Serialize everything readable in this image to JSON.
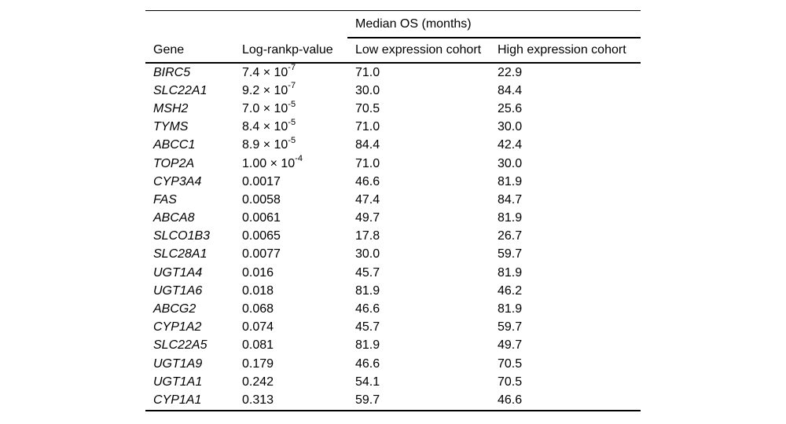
{
  "table": {
    "spanner_header": "Median OS (months)",
    "columns": [
      "Gene",
      "Log-rankp-value",
      "Low expression cohort",
      "High expression cohort"
    ],
    "rows": [
      {
        "gene": "BIRC5",
        "p_base": "7.4 × 10",
        "p_exp": "-7",
        "low": "71.0",
        "high": "22.9"
      },
      {
        "gene": "SLC22A1",
        "p_base": "9.2 × 10",
        "p_exp": "-7",
        "low": "30.0",
        "high": "84.4"
      },
      {
        "gene": "MSH2",
        "p_base": "7.0 × 10",
        "p_exp": "-5",
        "low": "70.5",
        "high": "25.6"
      },
      {
        "gene": "TYMS",
        "p_base": "8.4 × 10",
        "p_exp": "-5",
        "low": "71.0",
        "high": "30.0"
      },
      {
        "gene": "ABCC1",
        "p_base": "8.9 × 10",
        "p_exp": "-5",
        "low": "84.4",
        "high": "42.4"
      },
      {
        "gene": "TOP2A",
        "p_base": "1.00 × 10",
        "p_exp": "-4",
        "low": "71.0",
        "high": "30.0"
      },
      {
        "gene": "CYP3A4",
        "p_base": "0.0017",
        "p_exp": "",
        "low": "46.6",
        "high": "81.9"
      },
      {
        "gene": "FAS",
        "p_base": "0.0058",
        "p_exp": "",
        "low": "47.4",
        "high": "84.7"
      },
      {
        "gene": "ABCA8",
        "p_base": "0.0061",
        "p_exp": "",
        "low": "49.7",
        "high": "81.9"
      },
      {
        "gene": "SLCO1B3",
        "p_base": "0.0065",
        "p_exp": "",
        "low": "17.8",
        "high": "26.7"
      },
      {
        "gene": "SLC28A1",
        "p_base": "0.0077",
        "p_exp": "",
        "low": "30.0",
        "high": "59.7"
      },
      {
        "gene": "UGT1A4",
        "p_base": "0.016",
        "p_exp": "",
        "low": "45.7",
        "high": "81.9"
      },
      {
        "gene": "UGT1A6",
        "p_base": "0.018",
        "p_exp": "",
        "low": "81.9",
        "high": "46.2"
      },
      {
        "gene": "ABCG2",
        "p_base": "0.068",
        "p_exp": "",
        "low": "46.6",
        "high": "81.9"
      },
      {
        "gene": "CYP1A2",
        "p_base": "0.074",
        "p_exp": "",
        "low": "45.7",
        "high": "59.7"
      },
      {
        "gene": "SLC22A5",
        "p_base": "0.081",
        "p_exp": "",
        "low": "81.9",
        "high": "49.7"
      },
      {
        "gene": "UGT1A9",
        "p_base": "0.179",
        "p_exp": "",
        "low": "46.6",
        "high": "70.5"
      },
      {
        "gene": "UGT1A1",
        "p_base": "0.242",
        "p_exp": "",
        "low": "54.1",
        "high": "70.5"
      },
      {
        "gene": "CYP1A1",
        "p_base": "0.313",
        "p_exp": "",
        "low": "59.7",
        "high": "46.6"
      }
    ],
    "colors": {
      "text": "#000000",
      "rule": "#000000",
      "background": "#ffffff"
    }
  }
}
